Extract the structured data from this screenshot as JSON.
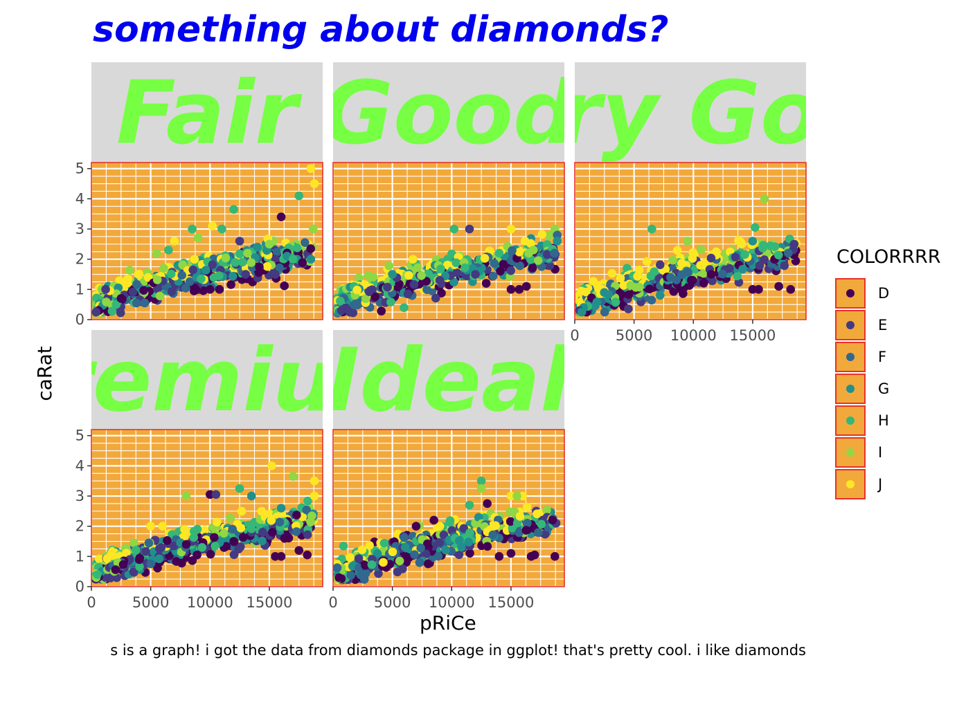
{
  "chart_data": {
    "type": "scatter",
    "title": "something about diamonds?",
    "caption": "s is a graph! i got the data from diamonds package in ggplot! that's pretty cool. i like diamonds",
    "xlabel": "pRiCe",
    "ylabel": "caRat",
    "xlim": [
      0,
      19500
    ],
    "ylim": [
      0,
      5.2
    ],
    "x_ticks": [
      "0",
      "5000",
      "10000",
      "15000"
    ],
    "y_ticks": [
      "0",
      "1",
      "2",
      "3",
      "4",
      "5"
    ],
    "legend_title": "COLORRRR",
    "legend_placement": "right",
    "legend": [
      {
        "label": "D",
        "color": "#440154"
      },
      {
        "label": "E",
        "color": "#443A83"
      },
      {
        "label": "F",
        "color": "#31688E"
      },
      {
        "label": "G",
        "color": "#21908D"
      },
      {
        "label": "H",
        "color": "#35B779"
      },
      {
        "label": "I",
        "color": "#8FD744"
      },
      {
        "label": "J",
        "color": "#FDE725"
      }
    ],
    "facets": [
      {
        "strip": "Fair",
        "points": [
          {
            "x": 16000,
            "y": 3.4,
            "c": "D"
          },
          {
            "x": 18500,
            "y": 5.0,
            "c": "J"
          },
          {
            "x": 18800,
            "y": 4.5,
            "c": "J"
          },
          {
            "x": 17500,
            "y": 4.1,
            "c": "H"
          },
          {
            "x": 12000,
            "y": 3.65,
            "c": "H"
          },
          {
            "x": 10200,
            "y": 3.1,
            "c": "J"
          },
          {
            "x": 8500,
            "y": 3.0,
            "c": "H"
          },
          {
            "x": 11000,
            "y": 3.0,
            "c": "H"
          },
          {
            "x": 18700,
            "y": 3.0,
            "c": "I"
          },
          {
            "x": 18000,
            "y": 2.55,
            "c": "F"
          },
          {
            "x": 12500,
            "y": 2.6,
            "c": "E"
          },
          {
            "x": 14000,
            "y": 2.4,
            "c": "G"
          },
          {
            "x": 9000,
            "y": 2.7,
            "c": "I"
          },
          {
            "x": 7000,
            "y": 2.6,
            "c": "J"
          },
          {
            "x": 6500,
            "y": 2.3,
            "c": "H"
          },
          {
            "x": 5500,
            "y": 2.2,
            "c": "I"
          },
          {
            "x": 15000,
            "y": 2.5,
            "c": "I"
          },
          {
            "x": 16500,
            "y": 2.1,
            "c": "G"
          },
          {
            "x": 17000,
            "y": 2.0,
            "c": "H"
          },
          {
            "x": 18500,
            "y": 2.0,
            "c": "G"
          },
          {
            "x": 10000,
            "y": 1.0,
            "c": "D"
          },
          {
            "x": 10800,
            "y": 1.0,
            "c": "D"
          },
          {
            "x": 8800,
            "y": 1.0,
            "c": "D"
          },
          {
            "x": 15500,
            "y": 1.5,
            "c": "E"
          },
          {
            "x": 13000,
            "y": 1.5,
            "c": "E"
          },
          {
            "x": 4500,
            "y": 0.55,
            "c": "F"
          },
          {
            "x": 3800,
            "y": 0.55,
            "c": "F"
          },
          {
            "x": 2500,
            "y": 0.7,
            "c": "D"
          },
          {
            "x": 1200,
            "y": 1.0,
            "c": "E"
          },
          {
            "x": 600,
            "y": 0.3,
            "c": "D"
          },
          {
            "x": 400,
            "y": 0.25,
            "c": "E"
          }
        ]
      },
      {
        "strip": "Good",
        "points": [
          {
            "x": 11500,
            "y": 3.0,
            "c": "E"
          },
          {
            "x": 10200,
            "y": 3.0,
            "c": "H"
          },
          {
            "x": 15000,
            "y": 3.0,
            "c": "J"
          },
          {
            "x": 18700,
            "y": 3.0,
            "c": "I"
          },
          {
            "x": 18900,
            "y": 2.8,
            "c": "F"
          },
          {
            "x": 18900,
            "y": 2.6,
            "c": "G"
          },
          {
            "x": 16300,
            "y": 1.1,
            "c": "D"
          },
          {
            "x": 15000,
            "y": 1.0,
            "c": "D"
          },
          {
            "x": 15700,
            "y": 1.0,
            "c": "D"
          },
          {
            "x": 12000,
            "y": 1.5,
            "c": "E"
          },
          {
            "x": 9000,
            "y": 1.3,
            "c": "E"
          },
          {
            "x": 14000,
            "y": 2.2,
            "c": "H"
          },
          {
            "x": 16500,
            "y": 2.2,
            "c": "I"
          },
          {
            "x": 5000,
            "y": 1.5,
            "c": "G"
          },
          {
            "x": 400,
            "y": 0.3,
            "c": "I"
          },
          {
            "x": 500,
            "y": 0.25,
            "c": "G"
          },
          {
            "x": 700,
            "y": 0.3,
            "c": "E"
          }
        ]
      },
      {
        "strip": "Very Good",
        "points": [
          {
            "x": 16000,
            "y": 4.0,
            "c": "I"
          },
          {
            "x": 15200,
            "y": 3.05,
            "c": "H"
          },
          {
            "x": 6500,
            "y": 3.0,
            "c": "H"
          },
          {
            "x": 9500,
            "y": 2.6,
            "c": "I"
          },
          {
            "x": 15000,
            "y": 2.6,
            "c": "G"
          },
          {
            "x": 18000,
            "y": 2.2,
            "c": "F"
          },
          {
            "x": 18500,
            "y": 2.5,
            "c": "E"
          },
          {
            "x": 18200,
            "y": 1.0,
            "c": "D"
          },
          {
            "x": 15500,
            "y": 1.0,
            "c": "D"
          },
          {
            "x": 15000,
            "y": 1.0,
            "c": "D"
          },
          {
            "x": 17200,
            "y": 1.1,
            "c": "D"
          },
          {
            "x": 11500,
            "y": 1.5,
            "c": "D"
          },
          {
            "x": 400,
            "y": 0.3,
            "c": "E"
          },
          {
            "x": 600,
            "y": 0.25,
            "c": "G"
          }
        ]
      },
      {
        "strip": "Premium",
        "points": [
          {
            "x": 15200,
            "y": 4.0,
            "c": "J"
          },
          {
            "x": 17000,
            "y": 3.65,
            "c": "I"
          },
          {
            "x": 18800,
            "y": 3.5,
            "c": "J"
          },
          {
            "x": 18800,
            "y": 3.0,
            "c": "J"
          },
          {
            "x": 10000,
            "y": 3.05,
            "c": "D"
          },
          {
            "x": 10500,
            "y": 3.05,
            "c": "E"
          },
          {
            "x": 12500,
            "y": 3.25,
            "c": "H"
          },
          {
            "x": 13500,
            "y": 3.0,
            "c": "G"
          },
          {
            "x": 8000,
            "y": 3.0,
            "c": "I"
          },
          {
            "x": 16000,
            "y": 2.6,
            "c": "G"
          },
          {
            "x": 18200,
            "y": 1.05,
            "c": "D"
          },
          {
            "x": 16000,
            "y": 1.0,
            "c": "D"
          },
          {
            "x": 15500,
            "y": 1.0,
            "c": "D"
          },
          {
            "x": 17500,
            "y": 1.2,
            "c": "D"
          },
          {
            "x": 12000,
            "y": 1.5,
            "c": "D"
          },
          {
            "x": 8000,
            "y": 1.4,
            "c": "D"
          },
          {
            "x": 6000,
            "y": 2.0,
            "c": "J"
          },
          {
            "x": 5000,
            "y": 2.0,
            "c": "J"
          },
          {
            "x": 400,
            "y": 0.3,
            "c": "I"
          },
          {
            "x": 500,
            "y": 0.4,
            "c": "H"
          }
        ]
      },
      {
        "strip": "Ideal",
        "points": [
          {
            "x": 12500,
            "y": 3.5,
            "c": "H"
          },
          {
            "x": 12500,
            "y": 3.25,
            "c": "I"
          },
          {
            "x": 13000,
            "y": 2.75,
            "c": "D"
          },
          {
            "x": 11500,
            "y": 2.7,
            "c": "H"
          },
          {
            "x": 15000,
            "y": 3.0,
            "c": "J"
          },
          {
            "x": 16000,
            "y": 3.0,
            "c": "J"
          },
          {
            "x": 15500,
            "y": 3.0,
            "c": "I"
          },
          {
            "x": 18800,
            "y": 2.1,
            "c": "E"
          },
          {
            "x": 18500,
            "y": 2.2,
            "c": "D"
          },
          {
            "x": 18700,
            "y": 1.0,
            "c": "D"
          },
          {
            "x": 16700,
            "y": 1.0,
            "c": "D"
          },
          {
            "x": 15000,
            "y": 1.1,
            "c": "D"
          },
          {
            "x": 17000,
            "y": 1.05,
            "c": "D"
          },
          {
            "x": 14000,
            "y": 1.0,
            "c": "D"
          },
          {
            "x": 9000,
            "y": 2.0,
            "c": "J"
          },
          {
            "x": 8500,
            "y": 2.2,
            "c": "D"
          },
          {
            "x": 7000,
            "y": 2.0,
            "c": "D"
          },
          {
            "x": 500,
            "y": 0.3,
            "c": "D"
          }
        ]
      }
    ],
    "colors": {
      "panel_fill": "#F2A93B",
      "panel_border": "#E8302A",
      "grid": "#FFFFFF",
      "strip_fill": "#D9D9D9",
      "strip_text": "#77FF44",
      "title": "#0000EE"
    }
  }
}
